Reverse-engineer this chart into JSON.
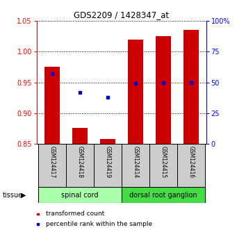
{
  "title": "GDS2209 / 1428347_at",
  "samples": [
    "GSM124417",
    "GSM124418",
    "GSM124419",
    "GSM124414",
    "GSM124415",
    "GSM124416"
  ],
  "red_values": [
    0.975,
    0.876,
    0.858,
    1.02,
    1.025,
    1.035
  ],
  "blue_values": [
    57,
    42,
    38,
    49,
    50,
    50
  ],
  "ylim_left": [
    0.85,
    1.05
  ],
  "ylim_right": [
    0,
    100
  ],
  "yticks_left": [
    0.85,
    0.9,
    0.95,
    1.0,
    1.05
  ],
  "yticks_right": [
    0,
    25,
    50,
    75,
    100
  ],
  "ytick_labels_right": [
    "0",
    "25",
    "50",
    "75",
    "100%"
  ],
  "bar_color": "#cc0000",
  "dot_color": "#0000cc",
  "tissue_groups": [
    {
      "label": "spinal cord",
      "start": 0,
      "end": 3,
      "color": "#aaffaa"
    },
    {
      "label": "dorsal root ganglion",
      "start": 3,
      "end": 6,
      "color": "#44dd44"
    }
  ],
  "legend_red": "transformed count",
  "legend_blue": "percentile rank within the sample",
  "tissue_label": "tissue",
  "bar_width": 0.55,
  "bg_color": "#ffffff",
  "label_area_color": "#cccccc"
}
